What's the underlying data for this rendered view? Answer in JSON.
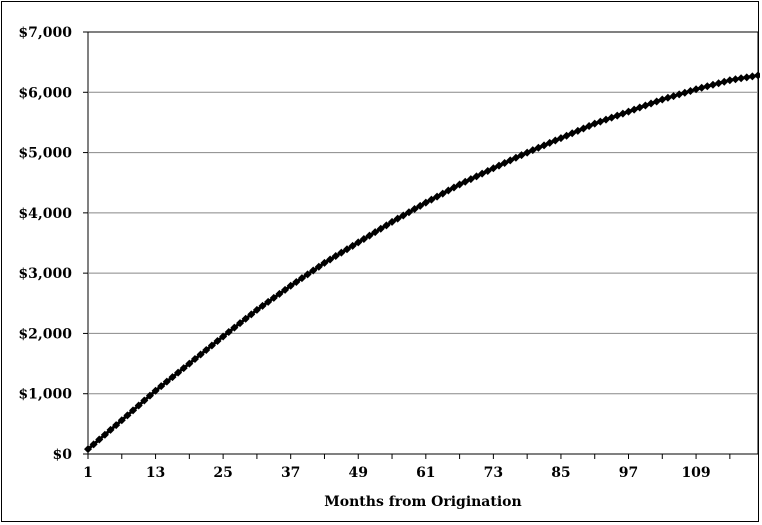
{
  "chart_data": {
    "type": "line",
    "title": "",
    "xlabel": "Months from Origination",
    "ylabel": "",
    "x_tick_labels": [
      "1",
      "13",
      "25",
      "37",
      "49",
      "61",
      "73",
      "85",
      "97",
      "109"
    ],
    "y_tick_labels": [
      "$0",
      "$1,000",
      "$2,000",
      "$3,000",
      "$4,000",
      "$5,000",
      "$6,000",
      "$7,000"
    ],
    "xlim": [
      1,
      120
    ],
    "ylim": [
      0,
      7000
    ],
    "grid": "horizontal",
    "legend": "none",
    "marker": "diamond",
    "series": [
      {
        "color": "#000000",
        "x": [
          1,
          7,
          13,
          19,
          25,
          31,
          37,
          43,
          49,
          55,
          61,
          67,
          73,
          79,
          85,
          91,
          97,
          103,
          109,
          115,
          120
        ],
        "y": [
          80,
          560,
          1050,
          1500,
          1950,
          2390,
          2790,
          3170,
          3510,
          3850,
          4170,
          4470,
          4740,
          5000,
          5240,
          5480,
          5680,
          5880,
          6050,
          6200,
          6280
        ]
      }
    ]
  }
}
